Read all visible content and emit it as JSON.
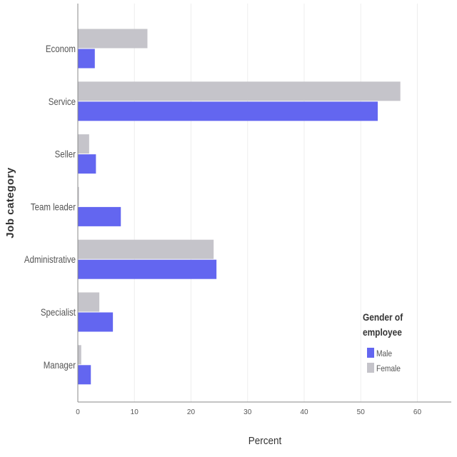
{
  "chart_data": {
    "type": "bar",
    "orientation": "horizontal",
    "categories": [
      "Econom",
      "Service",
      "Seller",
      "Team leader",
      "Administrative",
      "Specialist",
      "Manager"
    ],
    "series": [
      {
        "name": "Female",
        "color": "#c5c4ca",
        "values": [
          12.3,
          57.0,
          2.0,
          0.2,
          24.0,
          3.8,
          0.6
        ]
      },
      {
        "name": "Male",
        "color": "#6366f0",
        "values": [
          3.0,
          53.0,
          3.2,
          7.6,
          24.5,
          6.2,
          2.3
        ]
      }
    ],
    "xlabel": "Percent",
    "ylabel": "Job category",
    "xlim": [
      0,
      66
    ],
    "xticks": [
      0,
      10,
      20,
      30,
      40,
      50,
      60
    ],
    "grid": true,
    "legend": {
      "title_line1": "Gender of",
      "title_line2": "employee",
      "placement": "bottom-right",
      "entries": [
        "Male",
        "Female"
      ]
    }
  }
}
